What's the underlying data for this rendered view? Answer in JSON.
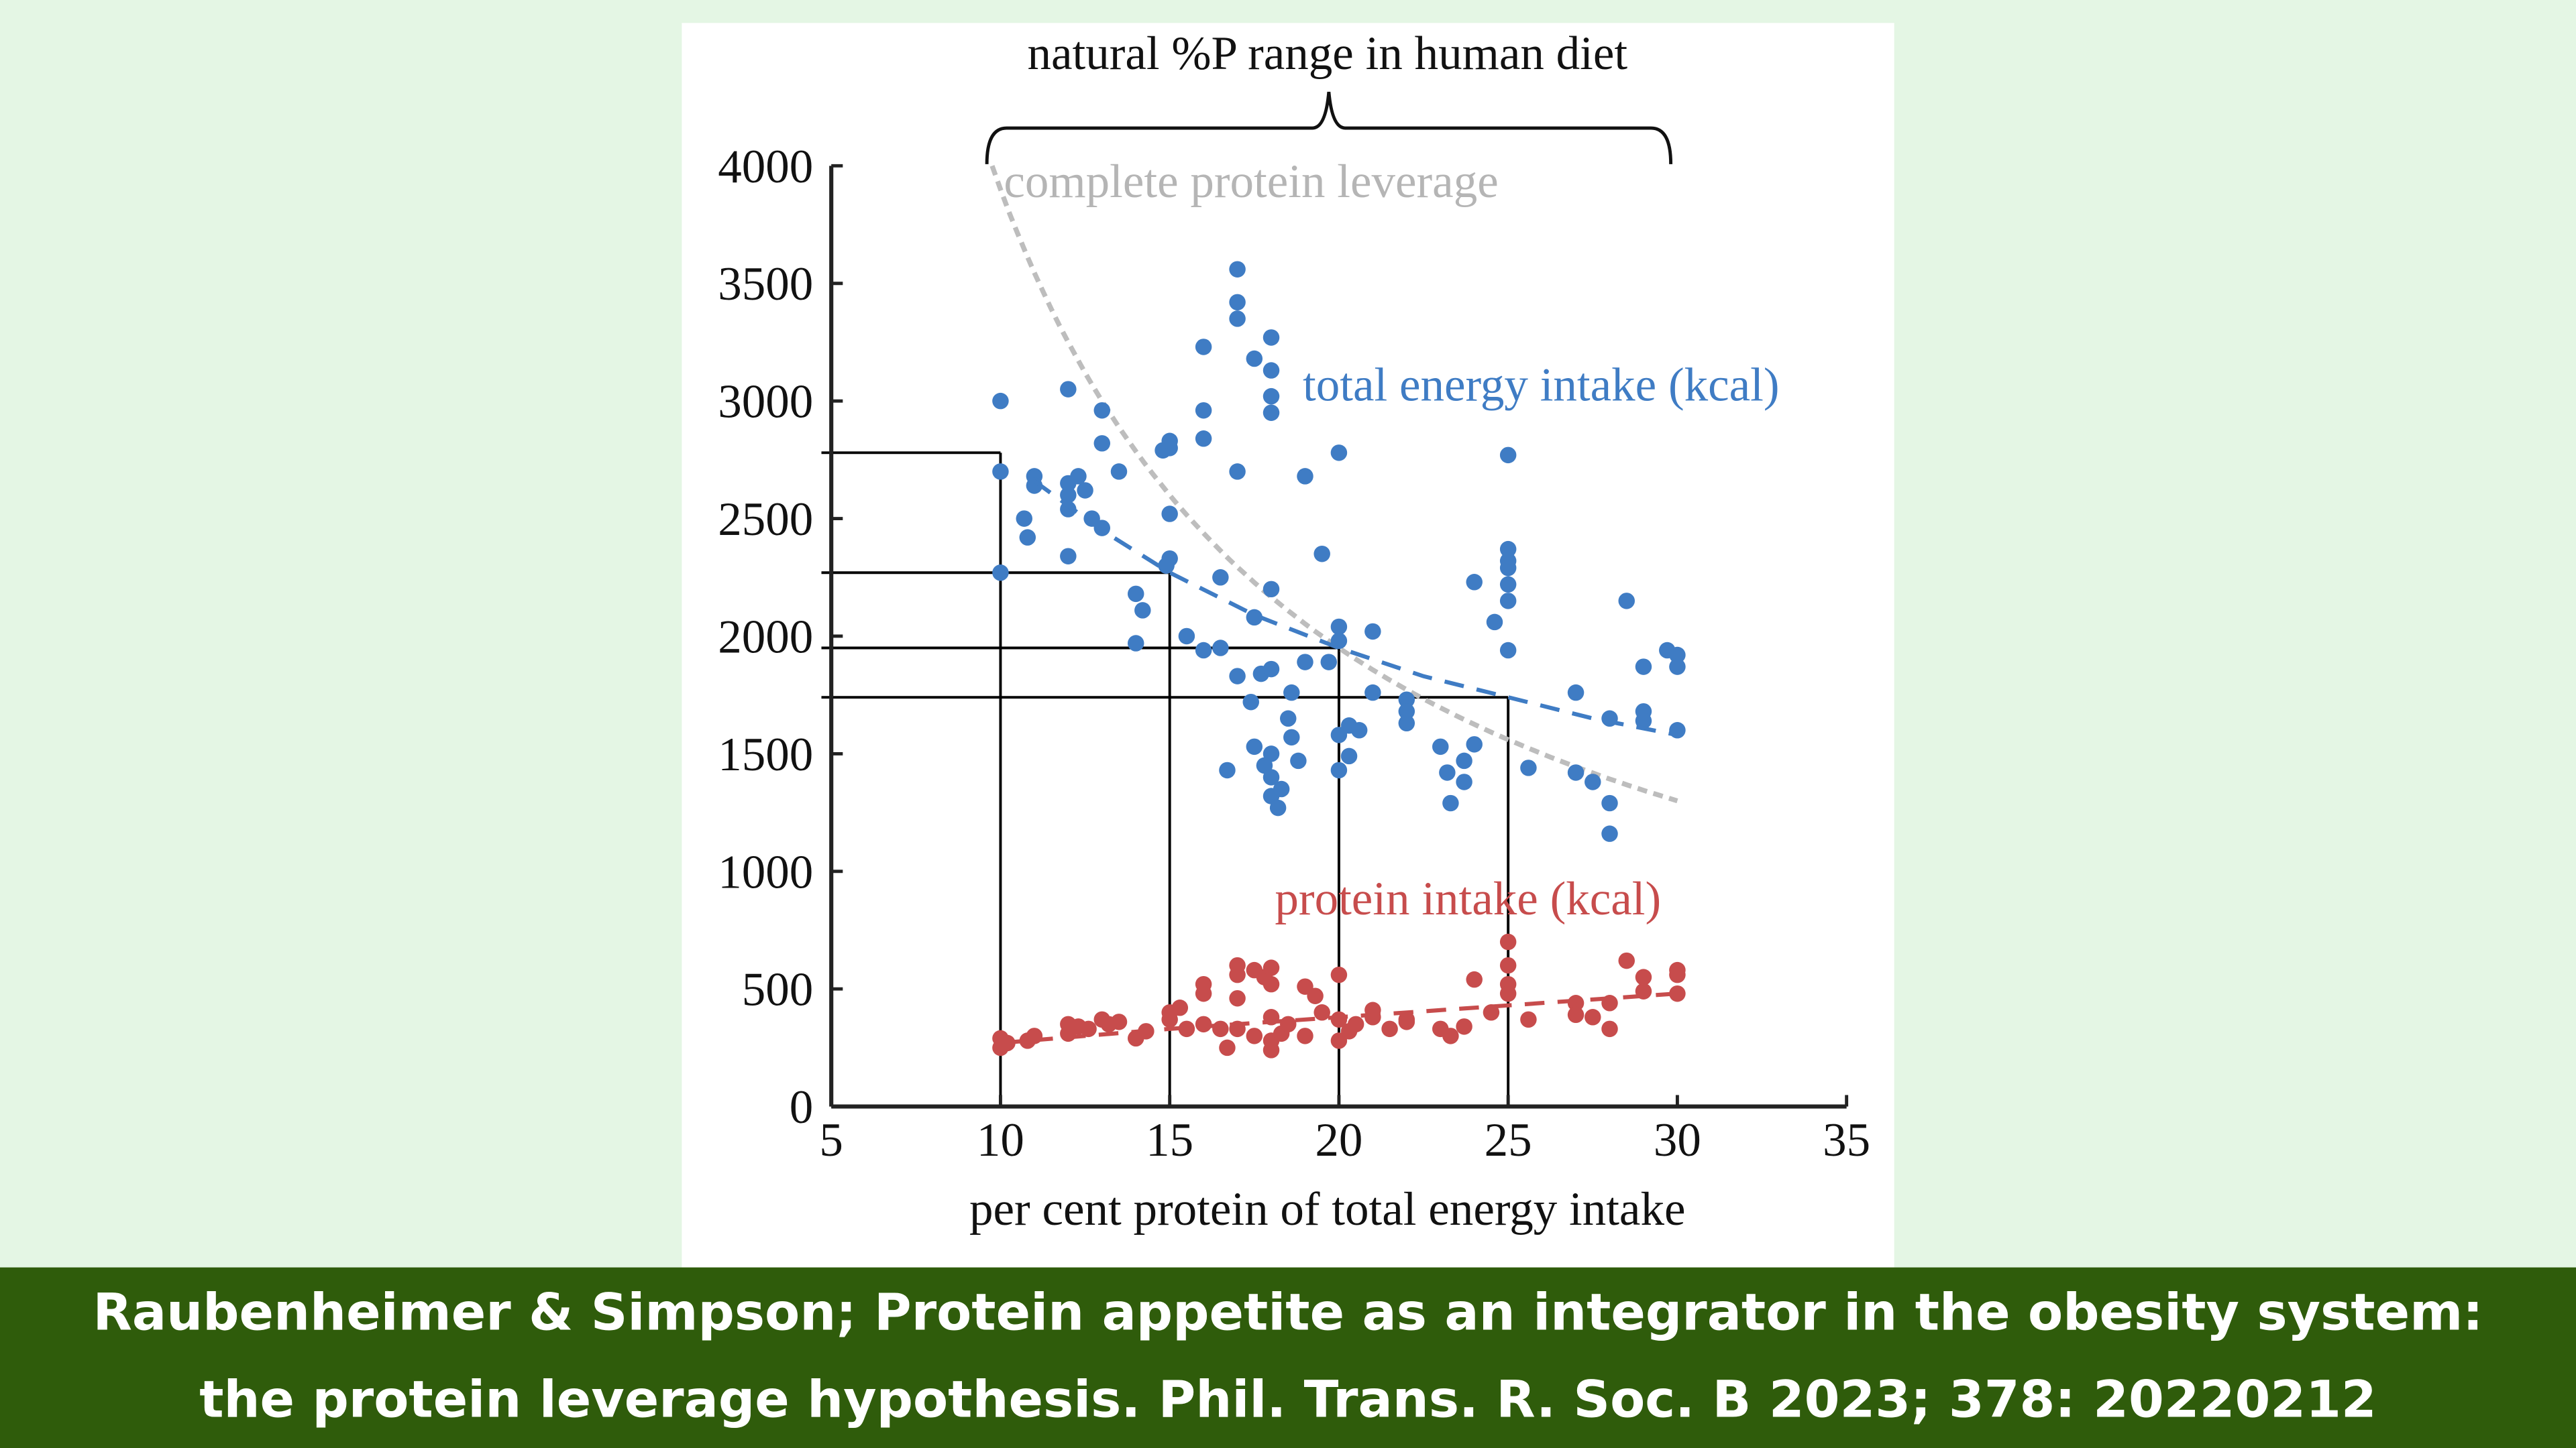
{
  "chart_data": {
    "type": "scatter",
    "title": "natural %P range in human diet",
    "xlabel": "per cent protein of total energy intake",
    "ylabel": "",
    "xlim": [
      5,
      35
    ],
    "ylim": [
      0,
      4000
    ],
    "xticks": [
      "5",
      "10",
      "15",
      "20",
      "25",
      "30",
      "35"
    ],
    "yticks": [
      "0",
      "500",
      "1000",
      "1500",
      "2000",
      "2500",
      "3000",
      "3500",
      "4000"
    ],
    "grid": false,
    "colors": {
      "energy": "#3f7cc4",
      "protein": "#c74c4c",
      "leverage": "#bdbdbd"
    },
    "annotations": {
      "leverage_label": "complete protein leverage",
      "energy_label": "total energy intake (kcal)",
      "protein_label": "protein intake (kcal)",
      "natural_range": [
        9.5,
        30
      ]
    },
    "guide_lines": [
      [
        10,
        2780
      ],
      [
        15,
        2270
      ],
      [
        20,
        1950
      ],
      [
        25,
        1740
      ]
    ],
    "series": [
      {
        "name": "total energy intake (kcal)",
        "points": [
          [
            10,
            3000
          ],
          [
            10,
            2700
          ],
          [
            10,
            2270
          ],
          [
            10.7,
            2500
          ],
          [
            10.8,
            2420
          ],
          [
            11,
            2680
          ],
          [
            11,
            2640
          ],
          [
            12,
            3050
          ],
          [
            12,
            2650
          ],
          [
            12,
            2600
          ],
          [
            12,
            2540
          ],
          [
            12,
            2340
          ],
          [
            12.3,
            2680
          ],
          [
            12.5,
            2620
          ],
          [
            12.7,
            2500
          ],
          [
            13,
            2960
          ],
          [
            13,
            2820
          ],
          [
            13,
            2460
          ],
          [
            13.5,
            2700
          ],
          [
            14,
            2180
          ],
          [
            14.2,
            2110
          ],
          [
            14,
            1970
          ],
          [
            15,
            2800
          ],
          [
            14.8,
            2790
          ],
          [
            15,
            2830
          ],
          [
            15,
            2520
          ],
          [
            15,
            2330
          ],
          [
            14.9,
            2300
          ],
          [
            15.5,
            2000
          ],
          [
            16,
            3230
          ],
          [
            16,
            2960
          ],
          [
            16,
            2840
          ],
          [
            16.5,
            2250
          ],
          [
            16,
            1940
          ],
          [
            16.5,
            1950
          ],
          [
            17,
            3560
          ],
          [
            17,
            3420
          ],
          [
            17,
            3350
          ],
          [
            17,
            2700
          ],
          [
            17.5,
            3180
          ],
          [
            18,
            3270
          ],
          [
            18,
            3130
          ],
          [
            18,
            3020
          ],
          [
            18,
            2950
          ],
          [
            17.5,
            2080
          ],
          [
            18,
            2200
          ],
          [
            16.7,
            1430
          ],
          [
            17,
            1830
          ],
          [
            17.4,
            1720
          ],
          [
            17.5,
            1530
          ],
          [
            17.7,
            1840
          ],
          [
            18,
            1860
          ],
          [
            18,
            1500
          ],
          [
            17.8,
            1450
          ],
          [
            18,
            1400
          ],
          [
            18,
            1320
          ],
          [
            18.2,
            1270
          ],
          [
            18.3,
            1350
          ],
          [
            18.5,
            1650
          ],
          [
            18.6,
            1570
          ],
          [
            18.6,
            1760
          ],
          [
            19,
            2680
          ],
          [
            19,
            1890
          ],
          [
            18.8,
            1470
          ],
          [
            19.5,
            2350
          ],
          [
            19.7,
            1890
          ],
          [
            20,
            2780
          ],
          [
            20,
            2040
          ],
          [
            20,
            1980
          ],
          [
            20,
            1580
          ],
          [
            20,
            1430
          ],
          [
            20.3,
            1620
          ],
          [
            20.3,
            1490
          ],
          [
            20.6,
            1600
          ],
          [
            21,
            2020
          ],
          [
            21,
            1760
          ],
          [
            22,
            1730
          ],
          [
            22,
            1680
          ],
          [
            22,
            1630
          ],
          [
            23,
            1530
          ],
          [
            23.2,
            1420
          ],
          [
            23.3,
            1290
          ],
          [
            23.7,
            1470
          ],
          [
            23.7,
            1380
          ],
          [
            24,
            1540
          ],
          [
            24,
            2230
          ],
          [
            24.6,
            2060
          ],
          [
            25,
            2770
          ],
          [
            25,
            2370
          ],
          [
            25,
            2320
          ],
          [
            25,
            2290
          ],
          [
            25,
            2220
          ],
          [
            25,
            2150
          ],
          [
            25,
            1940
          ],
          [
            25.6,
            1440
          ],
          [
            27,
            1760
          ],
          [
            27,
            1420
          ],
          [
            27.5,
            1380
          ],
          [
            28,
            1650
          ],
          [
            28,
            1290
          ],
          [
            28,
            1160
          ],
          [
            28.5,
            2150
          ],
          [
            29,
            1870
          ],
          [
            29,
            1680
          ],
          [
            29,
            1640
          ],
          [
            29.7,
            1940
          ],
          [
            30,
            1920
          ],
          [
            30,
            1870
          ],
          [
            30,
            1600
          ]
        ],
        "fit": [
          [
            11,
            2660
          ],
          [
            13,
            2450
          ],
          [
            15,
            2270
          ],
          [
            17.5,
            2090
          ],
          [
            20,
            1950
          ],
          [
            22.5,
            1830
          ],
          [
            25,
            1740
          ],
          [
            27.5,
            1650
          ],
          [
            30,
            1580
          ]
        ]
      },
      {
        "name": "protein intake (kcal)",
        "points": [
          [
            10,
            250
          ],
          [
            10,
            290
          ],
          [
            10.2,
            270
          ],
          [
            10.8,
            280
          ],
          [
            11,
            300
          ],
          [
            12,
            350
          ],
          [
            12,
            310
          ],
          [
            12.3,
            340
          ],
          [
            12.6,
            330
          ],
          [
            13,
            370
          ],
          [
            13.2,
            350
          ],
          [
            13.5,
            360
          ],
          [
            14,
            290
          ],
          [
            14.3,
            320
          ],
          [
            15,
            400
          ],
          [
            15,
            370
          ],
          [
            15.3,
            420
          ],
          [
            15.5,
            330
          ],
          [
            16,
            520
          ],
          [
            16,
            480
          ],
          [
            16,
            350
          ],
          [
            16.5,
            330
          ],
          [
            16.7,
            250
          ],
          [
            17,
            600
          ],
          [
            17,
            560
          ],
          [
            17,
            460
          ],
          [
            17,
            330
          ],
          [
            17.5,
            580
          ],
          [
            17.5,
            300
          ],
          [
            17.8,
            550
          ],
          [
            18,
            590
          ],
          [
            18,
            520
          ],
          [
            18,
            380
          ],
          [
            18,
            280
          ],
          [
            18,
            240
          ],
          [
            18.3,
            310
          ],
          [
            18.5,
            350
          ],
          [
            19,
            510
          ],
          [
            19,
            300
          ],
          [
            19.3,
            470
          ],
          [
            19.5,
            400
          ],
          [
            20,
            560
          ],
          [
            20,
            370
          ],
          [
            20,
            280
          ],
          [
            20.3,
            320
          ],
          [
            20.5,
            350
          ],
          [
            21,
            410
          ],
          [
            21,
            380
          ],
          [
            21.5,
            330
          ],
          [
            22,
            370
          ],
          [
            22,
            360
          ],
          [
            23,
            330
          ],
          [
            23.3,
            300
          ],
          [
            23.7,
            340
          ],
          [
            24,
            540
          ],
          [
            24.5,
            400
          ],
          [
            25,
            700
          ],
          [
            25,
            600
          ],
          [
            25,
            520
          ],
          [
            25,
            480
          ],
          [
            25.6,
            370
          ],
          [
            27,
            440
          ],
          [
            27,
            390
          ],
          [
            27.5,
            380
          ],
          [
            28,
            440
          ],
          [
            28,
            330
          ],
          [
            28.5,
            620
          ],
          [
            29,
            550
          ],
          [
            29,
            490
          ],
          [
            30,
            580
          ],
          [
            30,
            560
          ],
          [
            30,
            480
          ]
        ],
        "fit": [
          [
            10,
            270
          ],
          [
            15,
            330
          ],
          [
            20,
            380
          ],
          [
            25,
            430
          ],
          [
            30,
            480
          ]
        ]
      }
    ]
  },
  "caption": {
    "line1": "Raubenheimer & Simpson; Protein appetite as an integrator in the obesity system:",
    "line2": "the protein leverage hypothesis. Phil. Trans. R. Soc. B 2023; 378: 20220212"
  }
}
